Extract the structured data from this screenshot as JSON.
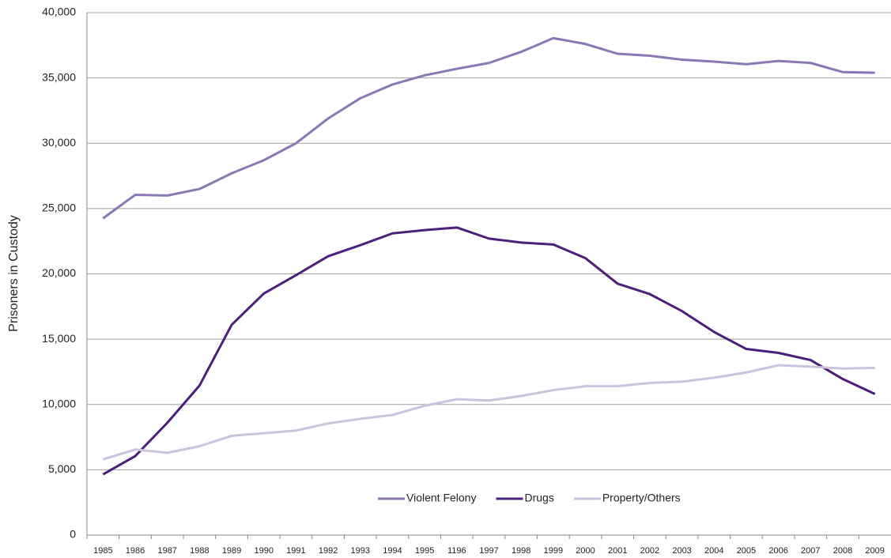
{
  "chart_data": {
    "type": "line",
    "y_label": "Prisoners in Custody",
    "categories": [
      "1985",
      "1986",
      "1987",
      "1988",
      "1989",
      "1990",
      "1991",
      "1992",
      "1993",
      "1994",
      "1995",
      "1196",
      "1997",
      "1998",
      "1999",
      "2000",
      "2001",
      "2002",
      "2003",
      "2004",
      "2005",
      "2006",
      "2007",
      "2008",
      "2009"
    ],
    "series": [
      {
        "name": "Violent Felony",
        "color": "#8a78b5",
        "values": [
          24250,
          26050,
          26000,
          26500,
          27700,
          28700,
          30000,
          31900,
          33450,
          34500,
          35200,
          35700,
          36150,
          37000,
          38050,
          37600,
          36850,
          36700,
          36400,
          36250,
          36050,
          36300,
          36150,
          35450,
          35400
        ]
      },
      {
        "name": "Drugs",
        "color": "#4b1f7a",
        "values": [
          4650,
          6050,
          8600,
          11450,
          16100,
          18500,
          19900,
          21350,
          22200,
          23100,
          23350,
          23550,
          22700,
          22400,
          22250,
          21200,
          19250,
          18450,
          17150,
          15550,
          14250,
          13950,
          13400,
          11950,
          10800
        ]
      },
      {
        "name": "Property/Others",
        "color": "#cbc3de",
        "values": [
          5800,
          6550,
          6300,
          6800,
          7600,
          7800,
          8000,
          8550,
          8900,
          9200,
          9900,
          10400,
          10300,
          10650,
          11100,
          11400,
          11400,
          11650,
          11750,
          12050,
          12450,
          13000,
          12900,
          12750,
          12800
        ]
      }
    ],
    "ylim": [
      0,
      40000
    ],
    "yticks": [
      0,
      {
        "value": 5000,
        "label": "5,000"
      },
      {
        "value": 10000,
        "label": "10,000"
      },
      {
        "value": 15000,
        "label": "15,000"
      },
      {
        "value": 20000,
        "label": "20,000"
      },
      {
        "value": 25000,
        "label": "25,000"
      },
      {
        "value": 30000,
        "label": "30,000"
      },
      {
        "value": 35000,
        "label": "35,000"
      },
      {
        "value": 40000,
        "label": "40,000"
      }
    ],
    "grid": true,
    "legend": "bottom"
  }
}
